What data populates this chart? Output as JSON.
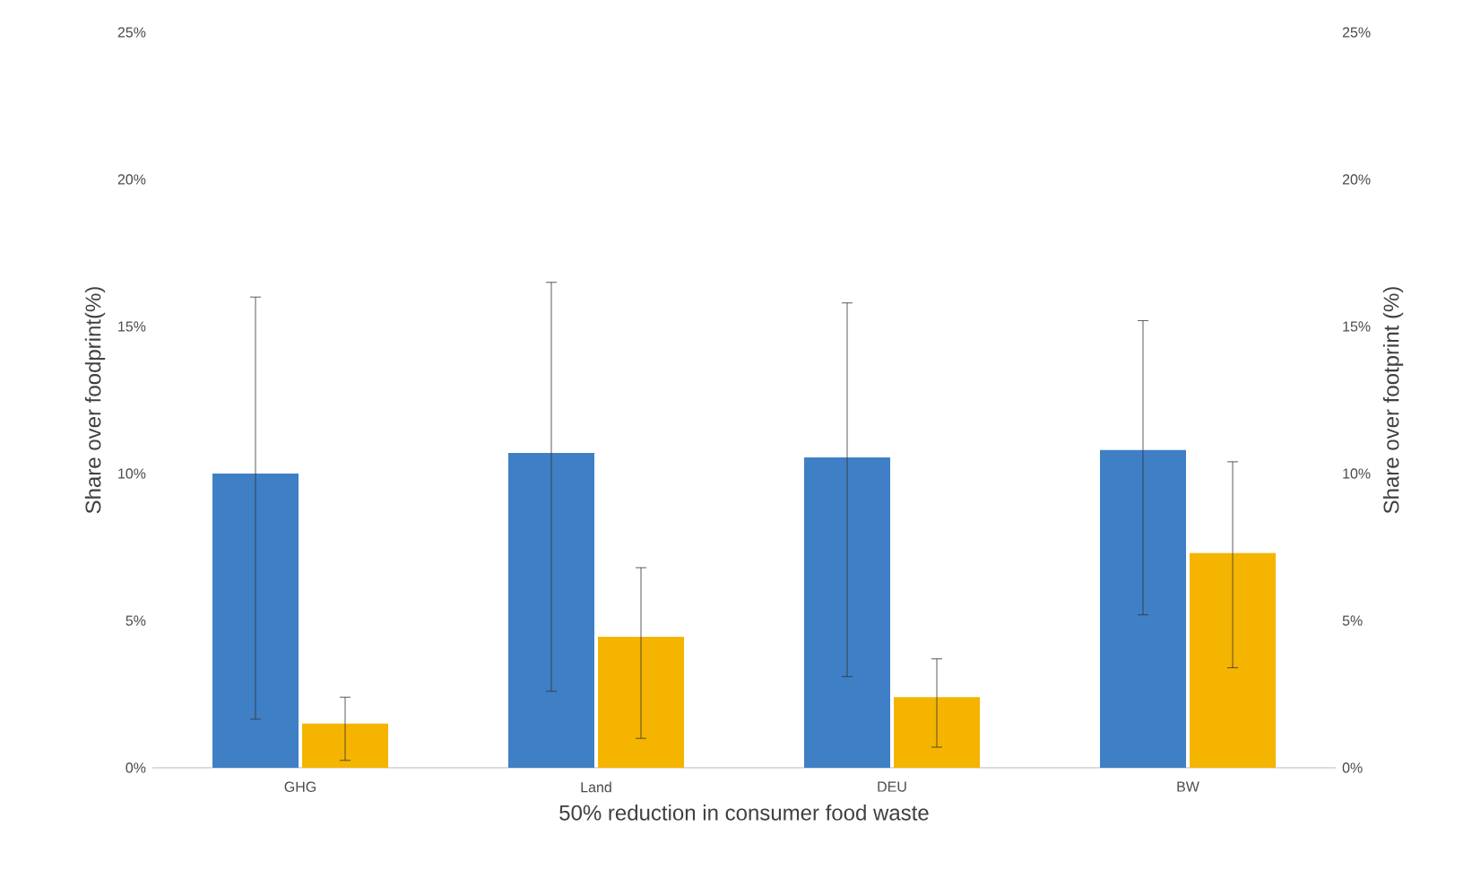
{
  "chart_data": {
    "type": "bar",
    "xlabel": "50% reduction in consumer food waste",
    "ylabel": "Share over foodprint(%)",
    "y2label": "Share over footprint (%)",
    "categories": [
      "GHG",
      "Land",
      "DEU",
      "BW"
    ],
    "series": [
      {
        "color": "#3f7fc6",
        "values": [
          10.0,
          10.7,
          10.55,
          10.8
        ],
        "errors": [
          [
            1.65,
            16.0
          ],
          [
            2.6,
            16.5
          ],
          [
            3.1,
            15.8
          ],
          [
            5.2,
            15.2
          ]
        ]
      },
      {
        "color": "#f5b400",
        "values": [
          1.5,
          4.45,
          2.4,
          7.3
        ],
        "errors": [
          [
            0.25,
            2.4
          ],
          [
            1.0,
            6.8
          ],
          [
            0.7,
            3.7
          ],
          [
            3.4,
            10.4
          ]
        ]
      }
    ],
    "ylim": [
      0,
      25
    ],
    "yticks": [
      {
        "value": 0,
        "label": "0%"
      },
      {
        "value": 5,
        "label": "5%"
      },
      {
        "value": 10,
        "label": "10%"
      },
      {
        "value": 15,
        "label": "15%"
      },
      {
        "value": 20,
        "label": "20%"
      },
      {
        "value": 25,
        "label": "25%"
      }
    ],
    "y2lim": [
      0,
      25
    ],
    "y2ticks": [
      {
        "value": 0,
        "label": "0%"
      },
      {
        "value": 5,
        "label": "5%"
      },
      {
        "value": 10,
        "label": "10%"
      },
      {
        "value": 15,
        "label": "15%"
      },
      {
        "value": 20,
        "label": "20%"
      },
      {
        "value": 25,
        "label": "25%"
      }
    ],
    "grid": false
  }
}
